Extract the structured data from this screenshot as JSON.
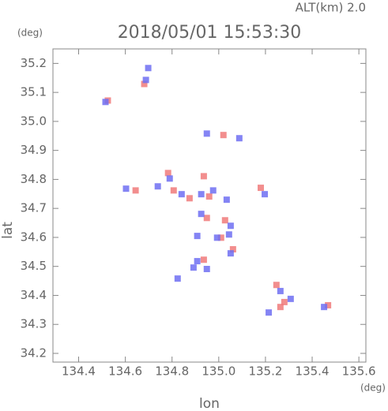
{
  "chart_data": {
    "type": "scatter",
    "title": "2018/05/01 15:53:30",
    "altitude_label": "ALT(km)  2.0",
    "y_unit": "(deg)",
    "x_unit": "(deg)",
    "x_label": "lon",
    "y_label": "lat",
    "xlim": [
      134.29,
      135.63
    ],
    "ylim": [
      34.17,
      35.25
    ],
    "xticks": [
      134.4,
      134.6,
      134.8,
      {
        "value": 135.0,
        "label": "135.0"
      },
      135.2,
      135.4,
      135.6
    ],
    "yticks": [
      34.2,
      34.3,
      34.4,
      34.5,
      34.6,
      34.7,
      34.8,
      34.9,
      {
        "value": 35.0,
        "label": "35.0"
      },
      35.1,
      35.2
    ],
    "series": [
      {
        "color": "#f07a7a",
        "x": [
          134.525,
          134.681,
          135.02,
          134.783,
          134.807,
          134.644,
          134.875,
          134.959,
          134.936,
          135.18,
          134.949,
          135.027,
          135.01,
          135.061,
          134.936,
          135.247,
          135.281,
          135.264,
          135.468
        ],
        "values": [
          35.072,
          35.129,
          34.953,
          34.822,
          34.762,
          34.762,
          34.735,
          34.741,
          34.811,
          34.771,
          34.667,
          34.659,
          34.599,
          34.559,
          34.523,
          34.436,
          34.377,
          34.36,
          34.366
        ]
      },
      {
        "color": "#6f6ff2",
        "x": [
          134.515,
          134.688,
          134.698,
          134.949,
          135.088,
          134.79,
          134.739,
          134.603,
          134.841,
          134.925,
          134.976,
          135.034,
          135.197,
          134.925,
          135.051,
          135.044,
          134.993,
          135.051,
          134.908,
          134.908,
          134.892,
          134.949,
          134.824,
          135.264,
          135.308,
          135.214,
          135.451
        ],
        "values": [
          35.067,
          35.143,
          35.184,
          34.958,
          34.942,
          34.803,
          34.776,
          34.768,
          34.749,
          34.749,
          34.762,
          34.73,
          34.749,
          34.681,
          34.64,
          34.61,
          34.599,
          34.545,
          34.605,
          34.518,
          34.496,
          34.491,
          34.458,
          34.415,
          34.388,
          34.341,
          34.36
        ]
      }
    ]
  }
}
